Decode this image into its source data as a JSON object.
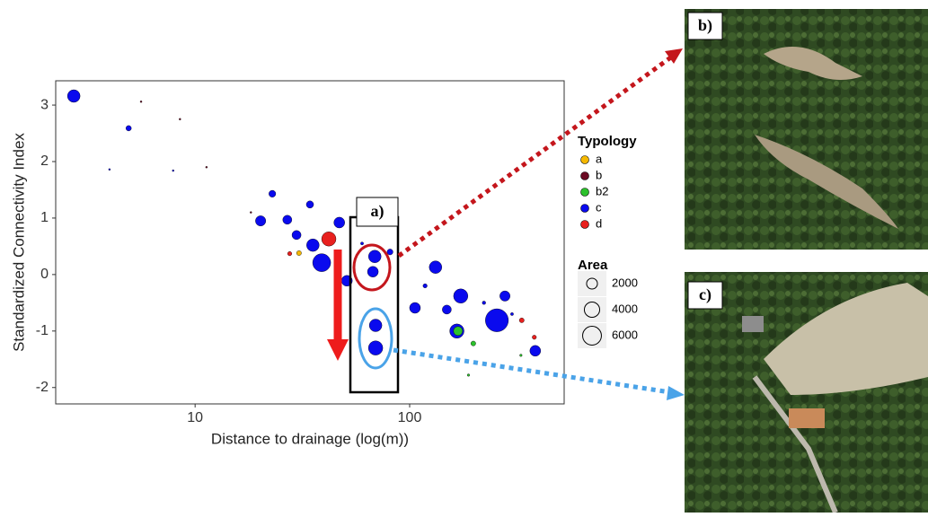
{
  "chart_data": {
    "type": "scatter",
    "x_label": "Distance to drainage (log(m))",
    "y_label": "Standardized Connectivity Index",
    "xlim": [
      2.24,
      525
    ],
    "ylim": [
      -2.29,
      3.43
    ],
    "xticks": [
      10,
      100
    ],
    "yticks": [
      -2,
      -1,
      0,
      1,
      2,
      3
    ],
    "log_x": true,
    "legend_title": "Typology",
    "size_legend_title": "Area",
    "size_legend": [
      2000,
      4000,
      6000
    ],
    "series": [
      {
        "name": "c",
        "color": "#0a0aee",
        "x": [
          2.72,
          4.9,
          3.99,
          7.9,
          22.9,
          20.2,
          26.9,
          34.3,
          29.7,
          35.4,
          38.9,
          47,
          51,
          68.8,
          67.4,
          81,
          69.4,
          69.4,
          105.9,
          132,
          173,
          149,
          166,
          255,
          278,
          385,
          60,
          118,
          222,
          300
        ],
        "y": [
          3.16,
          2.59,
          1.86,
          1.84,
          1.43,
          0.95,
          0.97,
          1.24,
          0.7,
          0.52,
          0.21,
          0.92,
          -0.11,
          0.32,
          0.05,
          0.4,
          -0.9,
          -1.3,
          -0.59,
          0.13,
          -0.38,
          -0.62,
          -1.0,
          -0.81,
          -0.38,
          -1.35,
          0.55,
          -0.2,
          -0.5,
          -0.7
        ],
        "sizes": [
          2700,
          500,
          50,
          50,
          800,
          1800,
          1400,
          900,
          1400,
          2700,
          5500,
          2000,
          2000,
          2700,
          2000,
          600,
          2700,
          3500,
          2000,
          2700,
          3500,
          1400,
          3500,
          9000,
          1800,
          2000,
          150,
          300,
          200,
          150
        ]
      },
      {
        "name": "a",
        "color": "#f5b800",
        "x": [
          30.5
        ],
        "y": [
          0.38
        ],
        "sizes": [
          400
        ]
      },
      {
        "name": "b",
        "color": "#6b0a24",
        "x": [
          5.6,
          8.5,
          11.3,
          18.2
        ],
        "y": [
          3.06,
          2.75,
          1.9,
          1.1
        ],
        "sizes": [
          50,
          20,
          20,
          40
        ]
      },
      {
        "name": "b2",
        "color": "#2cc12c",
        "x": [
          168,
          198,
          330,
          188
        ],
        "y": [
          -1.0,
          -1.22,
          -1.43,
          -1.78
        ],
        "sizes": [
          1400,
          400,
          100,
          100
        ]
      },
      {
        "name": "d",
        "color": "#e8201e",
        "x": [
          42,
          27.6,
          333,
          381
        ],
        "y": [
          0.63,
          0.37,
          -0.81,
          -1.11
        ],
        "sizes": [
          3500,
          300,
          400,
          300
        ]
      }
    ],
    "legend_order": [
      1,
      2,
      3,
      0,
      4
    ],
    "annotations": [
      "a)",
      "b)",
      "c)"
    ]
  }
}
